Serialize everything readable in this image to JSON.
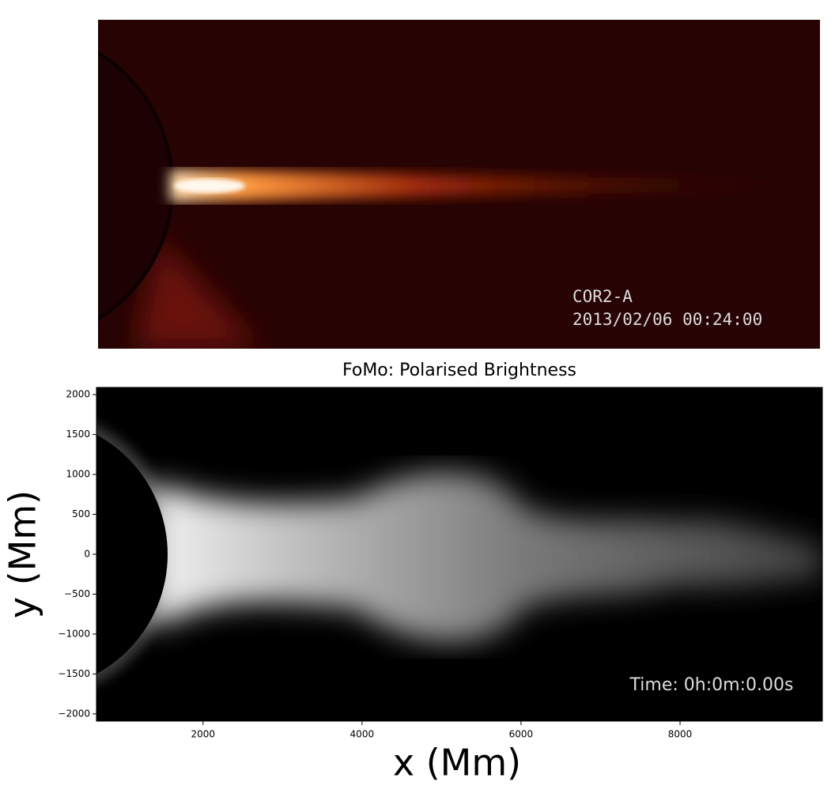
{
  "chart_data": [
    {
      "type": "image",
      "annotations": [
        "COR2-A",
        "2013/02/06 00:24:00"
      ]
    },
    {
      "type": "image",
      "title": "FoMo: Polarised Brightness",
      "xlabel": "x (Mm)",
      "ylabel": "y (Mm)",
      "annotations": [
        "Time: 0h:0m:0.00s"
      ],
      "xlim": [
        660,
        9790
      ],
      "ylim": [
        -2090,
        2090
      ],
      "xticks": [
        2000,
        4000,
        6000,
        8000
      ],
      "yticks": [
        {
          "value": -2000,
          "label": "−2000"
        },
        {
          "value": -1500,
          "label": "−1500"
        },
        {
          "value": -1000,
          "label": "−1000"
        },
        {
          "value": -500,
          "label": "−500"
        },
        0,
        500,
        1000,
        1500,
        2000
      ]
    }
  ]
}
